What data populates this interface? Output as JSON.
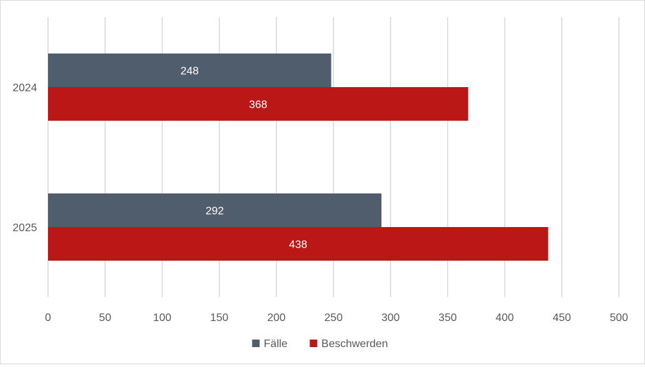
{
  "chart_data": {
    "type": "bar",
    "orientation": "horizontal",
    "title": "",
    "xlabel": "",
    "ylabel": "",
    "categories": [
      "2024",
      "2025"
    ],
    "series": [
      {
        "name": "Fälle",
        "color": "#505d6d",
        "values": [
          248,
          292
        ]
      },
      {
        "name": "Beschwerden",
        "color": "#bb1717",
        "values": [
          368,
          438
        ]
      }
    ],
    "xlim": [
      0,
      500
    ],
    "xticks": [
      0,
      50,
      100,
      150,
      200,
      250,
      300,
      350,
      400,
      450,
      500
    ],
    "grid": "vertical",
    "legend": "bottom-center",
    "data_labels": true
  }
}
